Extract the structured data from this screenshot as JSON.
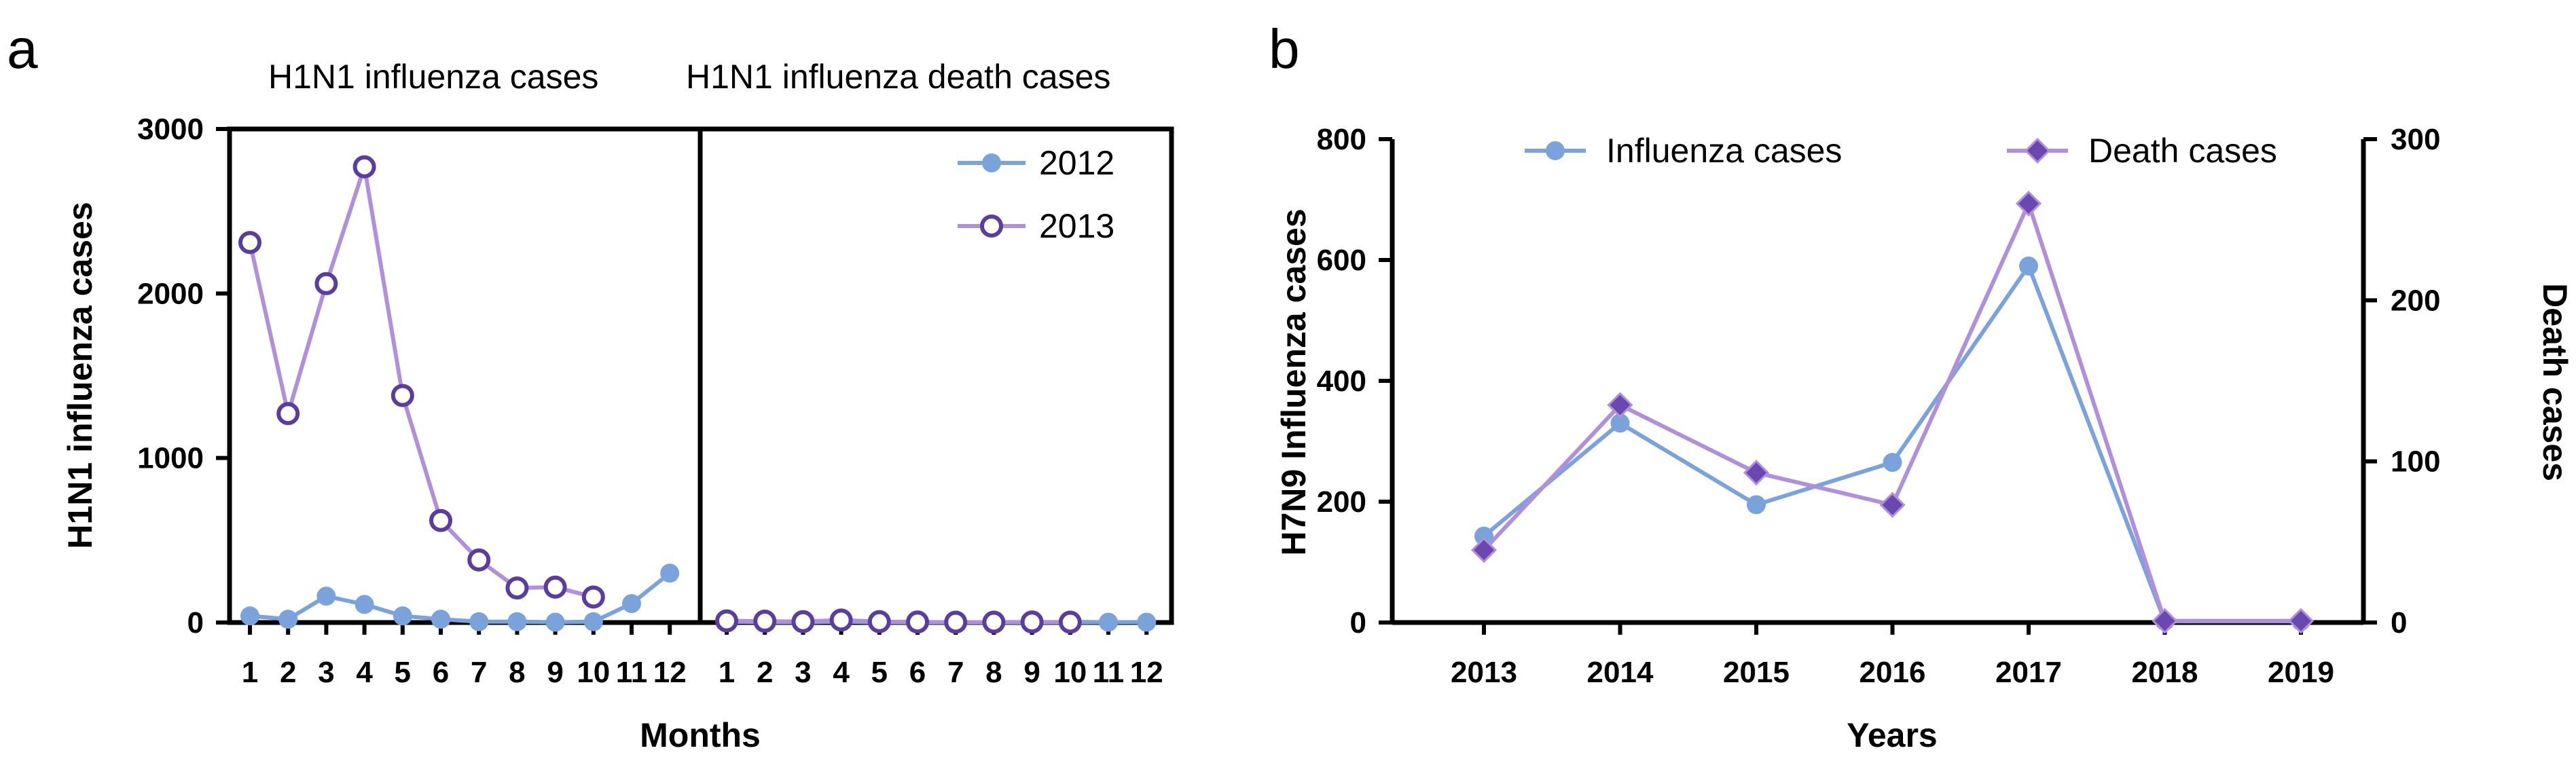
{
  "chart_data": [
    {
      "panel": "a",
      "type": "line",
      "facets": [
        "H1N1 influenza cases",
        "H1N1 influenza death cases"
      ],
      "categories": [
        "1",
        "2",
        "3",
        "4",
        "5",
        "6",
        "7",
        "8",
        "9",
        "10",
        "11",
        "12"
      ],
      "xlabel": "Months",
      "ylabel": "H1N1 influenza cases",
      "ylim": [
        0,
        3000
      ],
      "yticks": [
        "0",
        "1000",
        "2000",
        "3000"
      ],
      "legend": {
        "position": "top-right",
        "entries": [
          "2012",
          "2013"
        ]
      },
      "series": [
        {
          "name": "2012",
          "color": "#7BA3DB",
          "marker": "filled-circle",
          "cases": [
            40,
            20,
            160,
            110,
            40,
            20,
            5,
            5,
            2,
            5,
            115,
            300
          ],
          "deaths": [
            5,
            2,
            2,
            5,
            2,
            1,
            1,
            1,
            1,
            1,
            2,
            2
          ]
        },
        {
          "name": "2013",
          "color": "#B090DA",
          "marker_color": "#5A3E9E",
          "marker": "open-circle",
          "cases": [
            2310,
            1270,
            2060,
            2770,
            1380,
            620,
            380,
            210,
            215,
            155,
            null,
            null
          ],
          "deaths": [
            10,
            8,
            5,
            15,
            5,
            3,
            2,
            2,
            3,
            2,
            null,
            null
          ]
        }
      ]
    },
    {
      "panel": "b",
      "type": "line",
      "categories": [
        "2013",
        "2014",
        "2015",
        "2016",
        "2017",
        "2018",
        "2019"
      ],
      "xlabel": "Years",
      "ylabel": "H7N9 Influenza cases",
      "y2label": "Death cases",
      "ylim": [
        0,
        800
      ],
      "yticks": [
        "0",
        "200",
        "400",
        "600",
        "800"
      ],
      "y2lim": [
        0,
        300
      ],
      "y2ticks": [
        "0",
        "100",
        "200",
        "300"
      ],
      "legend": {
        "position": "top",
        "entries": [
          "Influenza cases",
          "Death cases"
        ]
      },
      "series": [
        {
          "name": "Influenza cases",
          "axis": "left",
          "color": "#7BA3DB",
          "marker": "filled-circle",
          "values": [
            143,
            330,
            195,
            265,
            590,
            2,
            2
          ]
        },
        {
          "name": "Death cases",
          "axis": "right",
          "color": "#B090DA",
          "marker_color": "#6B47B0",
          "marker": "filled-diamond",
          "values": [
            45,
            135,
            93,
            73,
            260,
            1,
            1
          ]
        }
      ]
    }
  ]
}
